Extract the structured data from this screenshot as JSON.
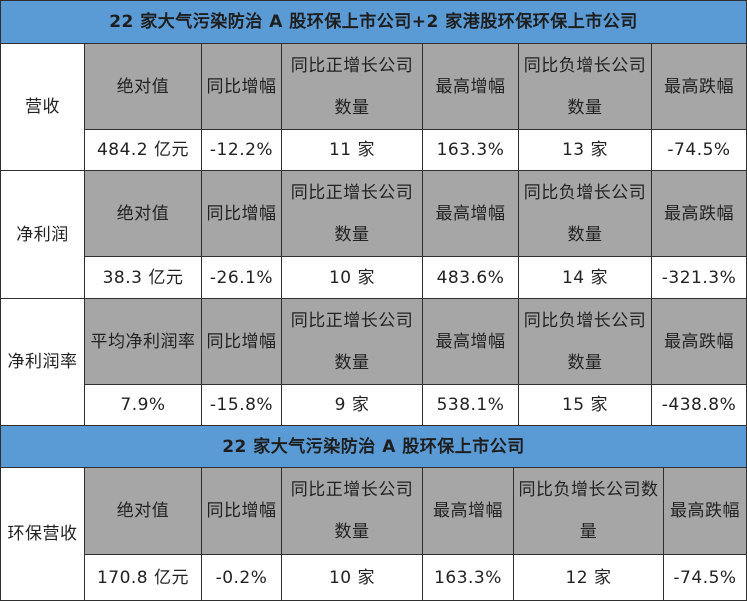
{
  "banner1": "22 家大气污染防治 A 股环保上市公司+2 家港股环保环保上市公司",
  "banner2": "22 家大气污染防治 A 股环保上市公司",
  "sections": [
    {
      "label": "营收",
      "headers": [
        "绝对值",
        "同比增幅",
        "同比正增长公司数量",
        "最高增幅",
        "同比负增长公司数量",
        "最高跌幅"
      ],
      "values": [
        "484.2 亿元",
        "-12.2%",
        "11 家",
        "163.3%",
        "13 家",
        "-74.5%"
      ]
    },
    {
      "label": "净利润",
      "headers": [
        "绝对值",
        "同比增幅",
        "同比正增长公司数量",
        "最高增幅",
        "同比负增长公司数量",
        "最高跌幅"
      ],
      "values": [
        "38.3 亿元",
        "-26.1%",
        "10 家",
        "483.6%",
        "14 家",
        "-321.3%"
      ]
    },
    {
      "label": "净利润率",
      "headers": [
        "平均净利润率",
        "同比增幅",
        "同比正增长公司数量",
        "最高增幅",
        "同比负增长公司数量",
        "最高跌幅"
      ],
      "values": [
        "7.9%",
        "-15.8%",
        "9 家",
        "538.1%",
        "15 家",
        "-438.8%"
      ]
    },
    {
      "label": "环保营收",
      "headers": [
        "绝对值",
        "同比增幅",
        "同比正增长公司数量",
        "最高增幅",
        "同比负增长公司数量",
        "最高跌幅"
      ],
      "values": [
        "170.8 亿元",
        "-0.2%",
        "10 家",
        "163.3%",
        "12 家",
        "-74.5%"
      ]
    }
  ]
}
